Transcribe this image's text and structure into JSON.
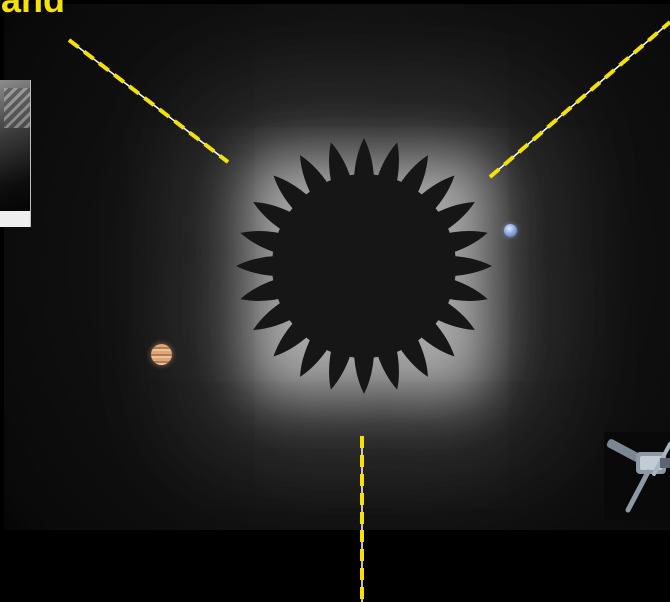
{
  "title_fragment": "and",
  "colors": {
    "title": "#f4e10a",
    "beam_yellow": "#f4e10a",
    "beam_white": "#ffffff",
    "starshade": "#161616",
    "background": "#000000"
  },
  "icons": {
    "starshade": "flower-shaped-starshade",
    "planet_left": "banded-gas-giant",
    "planet_right": "blue-ice-giant",
    "telescope": "space-telescope",
    "inset": "grayscale-image-inset"
  }
}
